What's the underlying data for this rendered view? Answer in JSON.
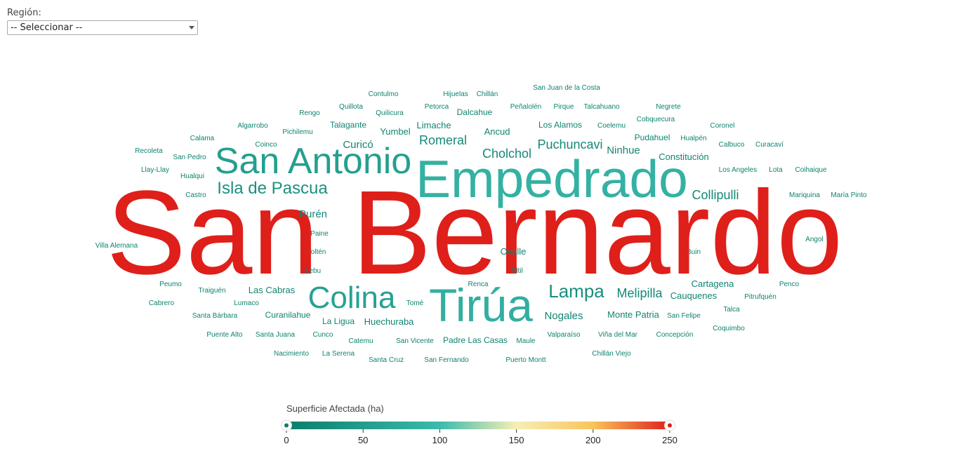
{
  "filter": {
    "label": "Región:",
    "selected": "-- Seleccionar --"
  },
  "colors": {
    "low": "#0a7e6a",
    "mid_low": "#3bbaad",
    "mid": "#f6efb4",
    "mid_high": "#f8c45c",
    "high": "#df1f1a"
  },
  "chart_data": {
    "type": "wordcloud",
    "color_scale": {
      "title": "Superficie Afectada (ha)",
      "min": 0,
      "max": 250,
      "ticks": [
        0,
        50,
        100,
        150,
        200,
        250
      ]
    },
    "words": [
      {
        "text": "San Bernardo",
        "value": 250
      },
      {
        "text": "Empedrado",
        "value": 85
      },
      {
        "text": "Tirúa",
        "value": 82
      },
      {
        "text": "San Antonio",
        "value": 55
      },
      {
        "text": "Colina",
        "value": 60
      },
      {
        "text": "Isla de Pascua",
        "value": 32
      },
      {
        "text": "Lampa",
        "value": 28
      },
      {
        "text": "Romeral",
        "value": 20
      },
      {
        "text": "Cholchol",
        "value": 20
      },
      {
        "text": "Puchuncavi",
        "value": 18
      },
      {
        "text": "Melipilla",
        "value": 18
      },
      {
        "text": "Collipulli",
        "value": 18
      },
      {
        "text": "Purén",
        "value": 15
      },
      {
        "text": "Curicó",
        "value": 14
      },
      {
        "text": "Ninhue",
        "value": 13
      },
      {
        "text": "Ovalle",
        "value": 12
      },
      {
        "text": "Cartagena",
        "value": 12
      },
      {
        "text": "Las Cabras",
        "value": 12
      },
      {
        "text": "Nogales",
        "value": 12
      },
      {
        "text": "Ancud",
        "value": 12
      },
      {
        "text": "Huechuraba",
        "value": 12
      },
      {
        "text": "Yumbel",
        "value": 11
      },
      {
        "text": "Limache",
        "value": 11
      },
      {
        "text": "Monte Patria",
        "value": 11
      },
      {
        "text": "Cauquenes",
        "value": 11
      },
      {
        "text": "Constitución",
        "value": 11
      },
      {
        "text": "Dalcahue",
        "value": 10
      },
      {
        "text": "Talagante",
        "value": 10
      },
      {
        "text": "Los Alamos",
        "value": 10
      },
      {
        "text": "Pudahuel",
        "value": 10
      },
      {
        "text": "Curanilahue",
        "value": 10
      },
      {
        "text": "Padre Las Casas",
        "value": 10
      },
      {
        "text": "La Ligua",
        "value": 10
      },
      {
        "text": "Contulmo",
        "value": 8
      },
      {
        "text": "Hijuelas",
        "value": 8
      },
      {
        "text": "Chillán",
        "value": 8
      },
      {
        "text": "San Juan de la Costa",
        "value": 8
      },
      {
        "text": "Quillota",
        "value": 8
      },
      {
        "text": "Petorca",
        "value": 8
      },
      {
        "text": "Peñalolén",
        "value": 8
      },
      {
        "text": "Pirque",
        "value": 8
      },
      {
        "text": "Talcahuano",
        "value": 8
      },
      {
        "text": "Negrete",
        "value": 8
      },
      {
        "text": "Rengo",
        "value": 8
      },
      {
        "text": "Quilicura",
        "value": 8
      },
      {
        "text": "Cobquecura",
        "value": 8
      },
      {
        "text": "Algarrobo",
        "value": 8
      },
      {
        "text": "Pichilemu",
        "value": 8
      },
      {
        "text": "Coelemu",
        "value": 8
      },
      {
        "text": "Coronel",
        "value": 8
      },
      {
        "text": "Calama",
        "value": 8
      },
      {
        "text": "Hualpén",
        "value": 8
      },
      {
        "text": "Coinco",
        "value": 8
      },
      {
        "text": "Calbuco",
        "value": 8
      },
      {
        "text": "Curacaví",
        "value": 8
      },
      {
        "text": "Recoleta",
        "value": 8
      },
      {
        "text": "San Pedro",
        "value": 8
      },
      {
        "text": "Llay-Llay",
        "value": 8
      },
      {
        "text": "Hualqui",
        "value": 8
      },
      {
        "text": "Los Angeles",
        "value": 8
      },
      {
        "text": "Lota",
        "value": 8
      },
      {
        "text": "Coihaique",
        "value": 8
      },
      {
        "text": "Castro",
        "value": 8
      },
      {
        "text": "Mariquina",
        "value": 8
      },
      {
        "text": "María Pinto",
        "value": 8
      },
      {
        "text": "Paine",
        "value": 8
      },
      {
        "text": "Angol",
        "value": 8
      },
      {
        "text": "Villa Alemana",
        "value": 8
      },
      {
        "text": "Toltén",
        "value": 8
      },
      {
        "text": "Buin",
        "value": 8
      },
      {
        "text": "Tiltil",
        "value": 8
      },
      {
        "text": "Lebu",
        "value": 8
      },
      {
        "text": "Peumo",
        "value": 8
      },
      {
        "text": "Renca",
        "value": 8
      },
      {
        "text": "Penco",
        "value": 8
      },
      {
        "text": "Traiguén",
        "value": 8
      },
      {
        "text": "Pitrufquén",
        "value": 8
      },
      {
        "text": "Cabrero",
        "value": 8
      },
      {
        "text": "Lumaco",
        "value": 8
      },
      {
        "text": "Tomé",
        "value": 8
      },
      {
        "text": "Talca",
        "value": 8
      },
      {
        "text": "Santa Bárbara",
        "value": 8
      },
      {
        "text": "San Felipe",
        "value": 8
      },
      {
        "text": "Coquimbo",
        "value": 8
      },
      {
        "text": "Puente Alto",
        "value": 8
      },
      {
        "text": "Santa Juana",
        "value": 8
      },
      {
        "text": "Cunco",
        "value": 8
      },
      {
        "text": "Valparaíso",
        "value": 8
      },
      {
        "text": "Viña del Mar",
        "value": 8
      },
      {
        "text": "Concepción",
        "value": 8
      },
      {
        "text": "Catemu",
        "value": 8
      },
      {
        "text": "San Vicente",
        "value": 8
      },
      {
        "text": "Maule",
        "value": 8
      },
      {
        "text": "Nacimiento",
        "value": 8
      },
      {
        "text": "La Serena",
        "value": 8
      },
      {
        "text": "Santa Cruz",
        "value": 8
      },
      {
        "text": "San Fernando",
        "value": 8
      },
      {
        "text": "Puerto Montt",
        "value": 8
      },
      {
        "text": "Chillán Viejo",
        "value": 8
      }
    ]
  }
}
